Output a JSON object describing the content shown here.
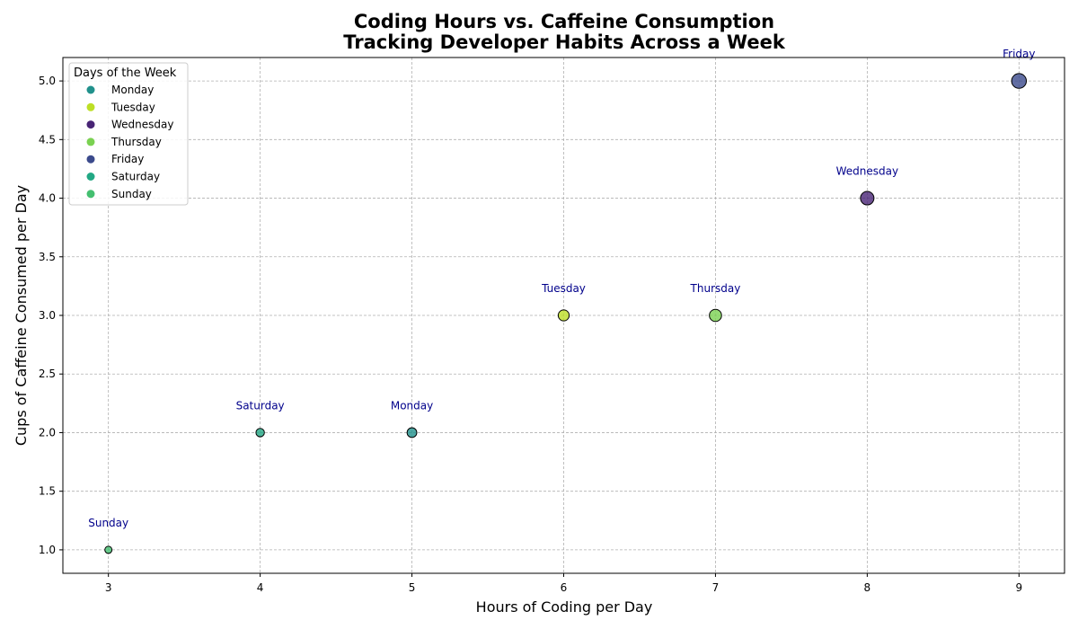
{
  "chart_data": {
    "type": "scatter",
    "title": "Coding Hours vs. Caffeine Consumption",
    "subtitle": "Tracking Developer Habits Across a Week",
    "xlabel": "Hours of Coding per Day",
    "ylabel": "Cups of Caffeine Consumed per Day",
    "xlim": [
      2.7,
      9.3
    ],
    "ylim": [
      0.8,
      5.2
    ],
    "xticks": [
      3,
      4,
      5,
      6,
      7,
      8,
      9
    ],
    "xtick_labels": [
      "3",
      "4",
      "5",
      "6",
      "7",
      "8",
      "9"
    ],
    "yticks": [
      1.0,
      1.5,
      2.0,
      2.5,
      3.0,
      3.5,
      4.0,
      4.5,
      5.0
    ],
    "ytick_labels": [
      "1.0",
      "1.5",
      "2.0",
      "2.5",
      "3.0",
      "3.5",
      "4.0",
      "4.5",
      "5.0"
    ],
    "grid": true,
    "legend": {
      "title": "Days of the Week",
      "position": "top-left"
    },
    "points": [
      {
        "label": "Monday",
        "x": 5,
        "y": 2,
        "color": "#21918c"
      },
      {
        "label": "Tuesday",
        "x": 6,
        "y": 3,
        "color": "#bddf26"
      },
      {
        "label": "Wednesday",
        "x": 8,
        "y": 4,
        "color": "#482475"
      },
      {
        "label": "Thursday",
        "x": 7,
        "y": 3,
        "color": "#7ad151"
      },
      {
        "label": "Friday",
        "x": 9,
        "y": 5,
        "color": "#3b4a8c"
      },
      {
        "label": "Saturday",
        "x": 4,
        "y": 2,
        "color": "#22a884"
      },
      {
        "label": "Sunday",
        "x": 3,
        "y": 1,
        "color": "#44bf70"
      }
    ]
  }
}
